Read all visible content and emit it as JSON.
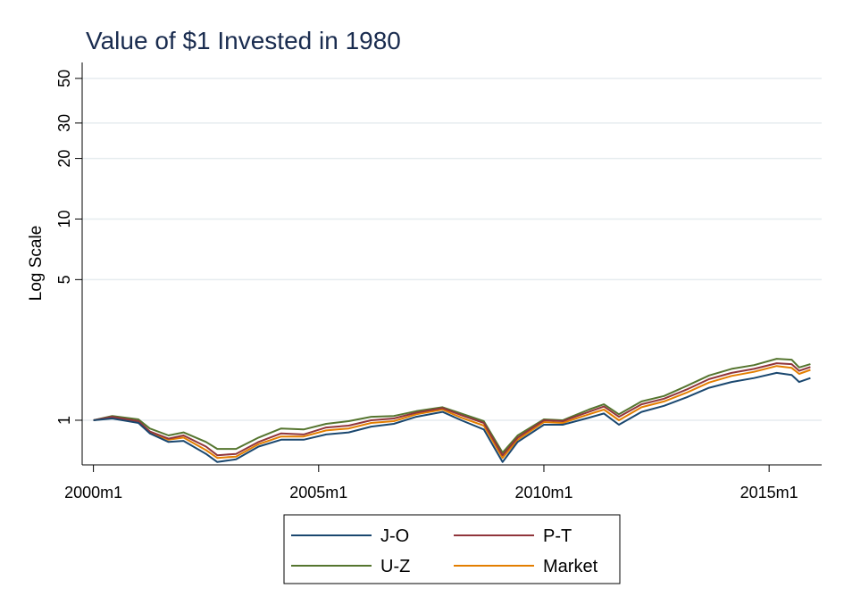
{
  "chart_data": {
    "type": "line",
    "title": "Value of $1 Invested in 1980",
    "xlabel": "",
    "ylabel": "Log Scale",
    "yscale": "log",
    "ylim": [
      0.6,
      60
    ],
    "xlim": [
      "1999-10",
      "2016-03"
    ],
    "y_ticks": [
      1,
      5,
      10,
      20,
      30,
      50
    ],
    "y_tick_labels": [
      "1",
      "5",
      "10",
      "20",
      "30",
      "50"
    ],
    "x_ticks": [
      "2000-01",
      "2005-01",
      "2010-01",
      "2015-01"
    ],
    "x_tick_labels": [
      "2000m1",
      "2005m1",
      "2010m1",
      "2015m1"
    ],
    "grid": true,
    "legend_position": "bottom",
    "x": [
      "2000-01",
      "2000-06",
      "2001-01",
      "2001-04",
      "2001-09",
      "2002-01",
      "2002-07",
      "2002-10",
      "2003-03",
      "2003-09",
      "2004-03",
      "2004-09",
      "2005-03",
      "2005-09",
      "2006-03",
      "2006-09",
      "2007-03",
      "2007-10",
      "2008-03",
      "2008-09",
      "2009-02",
      "2009-06",
      "2010-01",
      "2010-06",
      "2011-01",
      "2011-05",
      "2011-09",
      "2012-03",
      "2012-09",
      "2013-03",
      "2013-09",
      "2014-03",
      "2014-09",
      "2015-03",
      "2015-07",
      "2015-09",
      "2015-12"
    ],
    "series": [
      {
        "name": "J-O",
        "color": "#1a476f",
        "values": [
          1.0,
          1.02,
          0.97,
          0.86,
          0.78,
          0.79,
          0.68,
          0.62,
          0.64,
          0.74,
          0.8,
          0.8,
          0.85,
          0.87,
          0.93,
          0.96,
          1.04,
          1.1,
          1.0,
          0.9,
          0.62,
          0.78,
          0.95,
          0.95,
          1.03,
          1.08,
          0.95,
          1.1,
          1.18,
          1.3,
          1.45,
          1.55,
          1.62,
          1.72,
          1.68,
          1.55,
          1.62
        ]
      },
      {
        "name": "P-T",
        "color": "#90353b",
        "values": [
          1.0,
          1.04,
          0.99,
          0.88,
          0.81,
          0.84,
          0.74,
          0.67,
          0.68,
          0.78,
          0.86,
          0.85,
          0.92,
          0.94,
          1.0,
          1.02,
          1.09,
          1.15,
          1.06,
          0.97,
          0.67,
          0.82,
          1.0,
          0.99,
          1.1,
          1.17,
          1.04,
          1.2,
          1.28,
          1.42,
          1.6,
          1.72,
          1.8,
          1.92,
          1.9,
          1.76,
          1.84
        ]
      },
      {
        "name": "U-Z",
        "color": "#55752f",
        "values": [
          1.0,
          1.05,
          1.01,
          0.91,
          0.84,
          0.87,
          0.78,
          0.72,
          0.72,
          0.82,
          0.91,
          0.9,
          0.96,
          0.99,
          1.04,
          1.05,
          1.11,
          1.16,
          1.08,
          0.99,
          0.69,
          0.84,
          1.01,
          1.0,
          1.13,
          1.2,
          1.07,
          1.24,
          1.32,
          1.48,
          1.67,
          1.8,
          1.88,
          2.02,
          2.0,
          1.83,
          1.9
        ]
      },
      {
        "name": "Market",
        "color": "#e37e00",
        "values": [
          1.0,
          1.03,
          0.98,
          0.87,
          0.8,
          0.82,
          0.71,
          0.65,
          0.66,
          0.76,
          0.83,
          0.83,
          0.89,
          0.91,
          0.97,
          0.99,
          1.07,
          1.13,
          1.03,
          0.94,
          0.65,
          0.8,
          0.98,
          0.97,
          1.07,
          1.13,
          1.0,
          1.16,
          1.24,
          1.37,
          1.54,
          1.66,
          1.74,
          1.86,
          1.82,
          1.7,
          1.78
        ]
      }
    ]
  }
}
